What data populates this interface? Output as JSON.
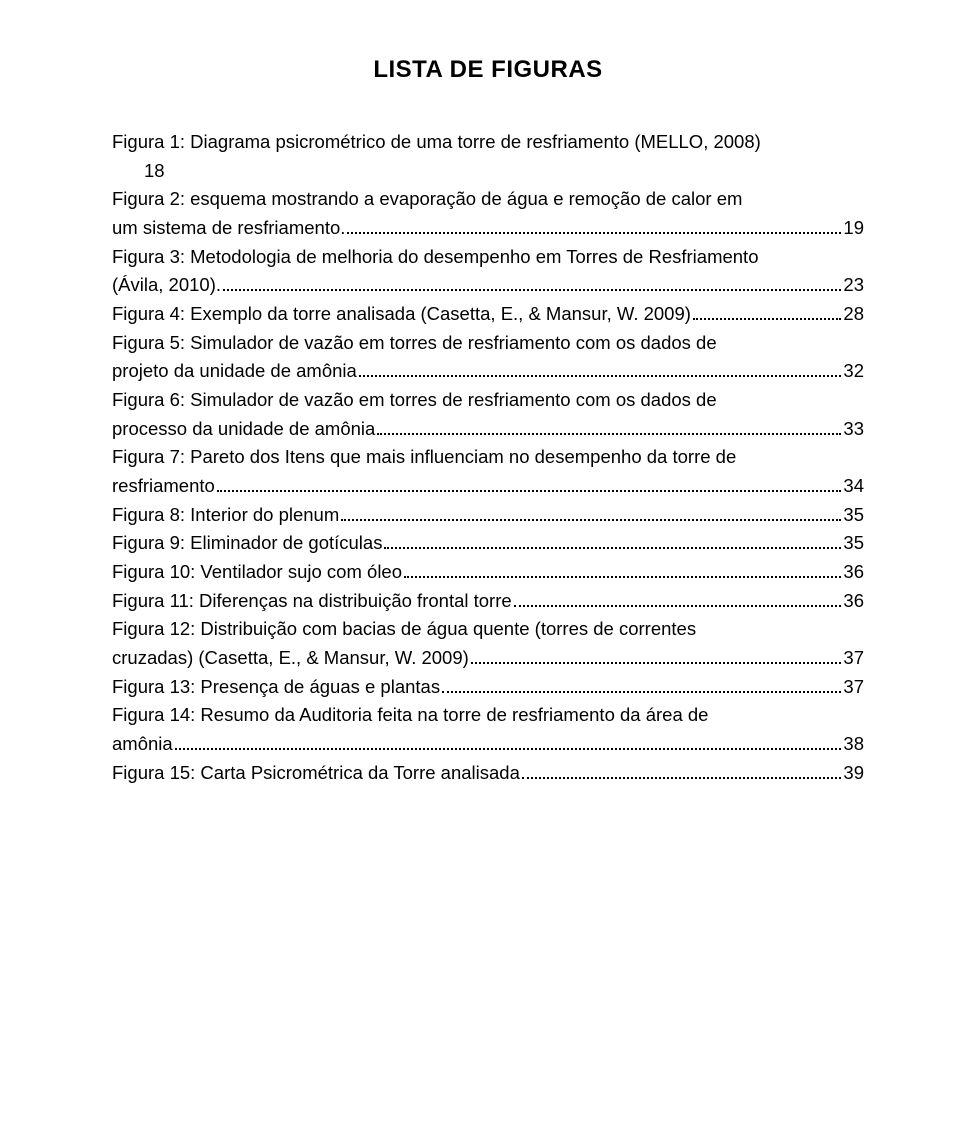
{
  "title": "LISTA DE FIGURAS",
  "font": {
    "title_size": 24,
    "body_size": 18.5,
    "family": "Arial"
  },
  "colors": {
    "text": "#000000",
    "background": "#ffffff"
  },
  "entries": [
    {
      "lines": [
        "Figura 1: Diagrama psicrométrico de uma torre de resfriamento (MELLO, 2008)"
      ],
      "page": "18",
      "page_on_own_line": true
    },
    {
      "lines": [
        "Figura 2: esquema mostrando a evaporação de água e remoção de calor em",
        "um sistema de resfriamento."
      ],
      "page": "19"
    },
    {
      "lines": [
        "Figura 3: Metodologia de melhoria do desempenho em Torres de Resfriamento",
        "(Ávila, 2010)."
      ],
      "page": "23"
    },
    {
      "lines": [
        "Figura 4: Exemplo da torre analisada (Casetta, E., & Mansur, W. 2009)"
      ],
      "page": "28"
    },
    {
      "lines": [
        "Figura 5: Simulador de vazão em torres de resfriamento com os dados de",
        "projeto da unidade de amônia"
      ],
      "page": "32"
    },
    {
      "lines": [
        "Figura 6: Simulador de vazão em torres de resfriamento com os dados de",
        "processo da unidade de amônia"
      ],
      "page": "33"
    },
    {
      "lines": [
        "Figura 7: Pareto dos Itens que mais influenciam no desempenho da torre de",
        "resfriamento"
      ],
      "page": "34"
    },
    {
      "lines": [
        "Figura 8: Interior do plenum"
      ],
      "page": "35"
    },
    {
      "lines": [
        "Figura 9: Eliminador de gotículas"
      ],
      "page": "35"
    },
    {
      "lines": [
        "Figura 10: Ventilador sujo com óleo"
      ],
      "page": "36"
    },
    {
      "lines": [
        "Figura 11: Diferenças na distribuição frontal torre"
      ],
      "page": "36"
    },
    {
      "lines": [
        "Figura 12: Distribuição com bacias de água quente (torres de correntes",
        "cruzadas) (Casetta, E., & Mansur, W. 2009)"
      ],
      "page": "37"
    },
    {
      "lines": [
        "Figura 13: Presença de águas e plantas"
      ],
      "page": "37"
    },
    {
      "lines": [
        "Figura 14: Resumo da Auditoria feita na torre de resfriamento da área de",
        "amônia"
      ],
      "page": "38"
    },
    {
      "lines": [
        "Figura 15: Carta Psicrométrica da Torre analisada"
      ],
      "page": "39"
    }
  ]
}
